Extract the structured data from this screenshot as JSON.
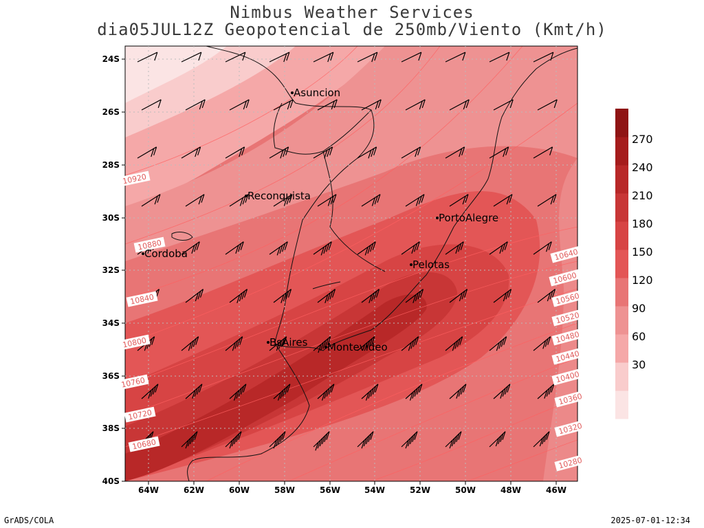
{
  "title": {
    "line1": "Nimbus Weather Services",
    "line2": "dia05JUL12Z Geopotencial de 250mb/Viento (Kmt/h)"
  },
  "footer": {
    "left": "GrADS/COLA",
    "right": "2025-07-01-12:34"
  },
  "axes": {
    "lat_labels": [
      "24S",
      "26S",
      "28S",
      "30S",
      "32S",
      "34S",
      "36S",
      "38S",
      "40S"
    ],
    "lon_labels": [
      "64W",
      "62W",
      "60W",
      "58W",
      "56W",
      "54W",
      "52W",
      "50W",
      "48W",
      "46W"
    ]
  },
  "cities": [
    {
      "name": "Asuncion"
    },
    {
      "name": "Reconquista"
    },
    {
      "name": "Cordoba"
    },
    {
      "name": "PortoAlegre"
    },
    {
      "name": "Pelotas"
    },
    {
      "name": "BsAires"
    },
    {
      "name": "Montevideo"
    }
  ],
  "contour_labels_left": [
    "10920",
    "10880",
    "10840",
    "10800",
    "10760",
    "10720",
    "10680"
  ],
  "contour_labels_right": [
    "10640",
    "10600",
    "10560",
    "10520",
    "10480",
    "10440",
    "10400",
    "10360",
    "10320",
    "10280"
  ],
  "colorbar": {
    "labels": [
      "270",
      "240",
      "210",
      "180",
      "150",
      "120",
      "90",
      "60",
      "30"
    ],
    "colors": [
      "#fbe4e4",
      "#f9cccc",
      "#f5a8a8",
      "#ee9292",
      "#e87575",
      "#e35656",
      "#d74444",
      "#c83636",
      "#b82828",
      "#a51c1c",
      "#8f1414"
    ]
  }
}
